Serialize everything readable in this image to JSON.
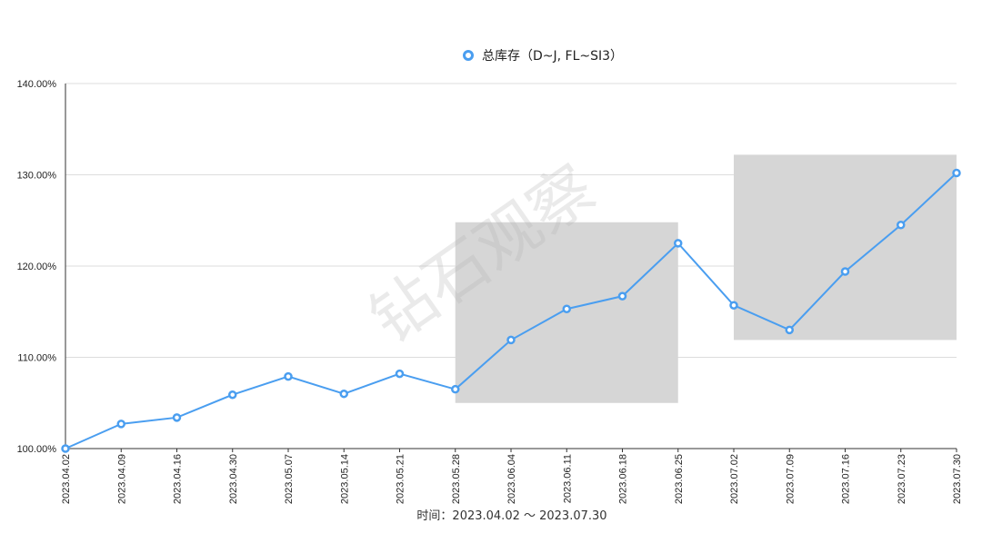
{
  "chart_data": {
    "type": "line",
    "categories": [
      "2023.04.02",
      "2023.04.09",
      "2023.04.16",
      "2023.04.30",
      "2023.05.07",
      "2023.05.14",
      "2023.05.21",
      "2023.05.28",
      "2023.06.04",
      "2023.06.11",
      "2023.06.18",
      "2023.06.25",
      "2023.07.02",
      "2023.07.09",
      "2023.07.16",
      "2023.07.23",
      "2023.07.30"
    ],
    "series": [
      {
        "name": "总库存（D~J, FL~SI3）",
        "color": "#4a9ef0",
        "values": [
          100.0,
          102.7,
          103.4,
          105.9,
          107.9,
          106.0,
          108.2,
          106.5,
          111.9,
          115.3,
          116.7,
          122.5,
          115.7,
          113.0,
          119.4,
          124.5,
          130.2
        ]
      }
    ],
    "yticks": [
      100,
      110,
      120,
      130,
      140
    ],
    "ytick_labels": [
      "100.00%",
      "110.00%",
      "120.00%",
      "130.00%",
      "140.00%"
    ],
    "ylim": [
      100,
      140
    ],
    "xlabel": "时间：2023.04.02 ～ 2023.07.30",
    "ylabel": "",
    "title": "",
    "grid": true,
    "legend_position": "top-center",
    "highlight_regions": [
      {
        "x_start": "2023.05.28",
        "x_end": "2023.06.25",
        "y_start": 105.0,
        "y_end": 124.8,
        "color": "#d6d6d6"
      },
      {
        "x_start": "2023.07.02",
        "x_end": "2023.07.30",
        "y_start": 111.9,
        "y_end": 132.2,
        "color": "#d6d6d6"
      }
    ],
    "watermark": "钻石观察"
  }
}
